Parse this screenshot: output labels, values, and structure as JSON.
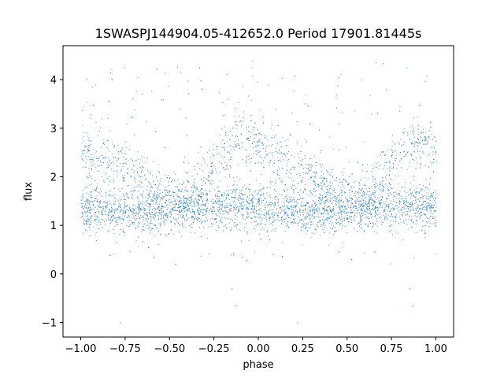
{
  "chart_data": {
    "type": "scatter",
    "title": "1SWASPJ144904.05-412652.0 Period 17901.81445s",
    "xlabel": "phase",
    "ylabel": "flux",
    "xlim": [
      -1.1,
      1.1
    ],
    "ylim": [
      -1.3,
      4.7
    ],
    "xticks": [
      -1.0,
      -0.75,
      -0.5,
      -0.25,
      0.0,
      0.25,
      0.5,
      0.75,
      1.0
    ],
    "xtick_labels": [
      "−1.00",
      "−0.75",
      "−0.50",
      "−0.25",
      "0.00",
      "0.25",
      "0.50",
      "0.75",
      "1.00"
    ],
    "yticks": [
      -1,
      0,
      1,
      2,
      3,
      4
    ],
    "ytick_labels": [
      "−1",
      "0",
      "1",
      "2",
      "3",
      "4"
    ],
    "grid": false,
    "legend": "none",
    "marker_color": "#1f77b4",
    "series": [
      {
        "x": [
          -1.0,
          -0.9,
          -0.8,
          -0.7,
          -0.6,
          -0.5,
          -0.4,
          -0.3,
          -0.2,
          -0.1,
          0.0,
          0.1,
          0.2,
          0.3,
          0.4,
          0.5,
          0.6,
          0.7,
          0.8,
          0.9,
          1.0
        ],
        "y_main": [
          1.35,
          1.35,
          1.3,
          1.3,
          1.3,
          1.3,
          1.35,
          1.4,
          1.4,
          1.4,
          1.35,
          1.35,
          1.3,
          1.3,
          1.3,
          1.3,
          1.35,
          1.4,
          1.4,
          1.4,
          1.35
        ],
        "y_varying": [
          2.6,
          2.4,
          2.2,
          2.0,
          1.8,
          1.6,
          1.6,
          1.9,
          2.6,
          2.8,
          2.6,
          2.4,
          2.2,
          2.0,
          1.8,
          1.6,
          1.6,
          1.9,
          2.6,
          2.8,
          2.6
        ]
      }
    ]
  }
}
